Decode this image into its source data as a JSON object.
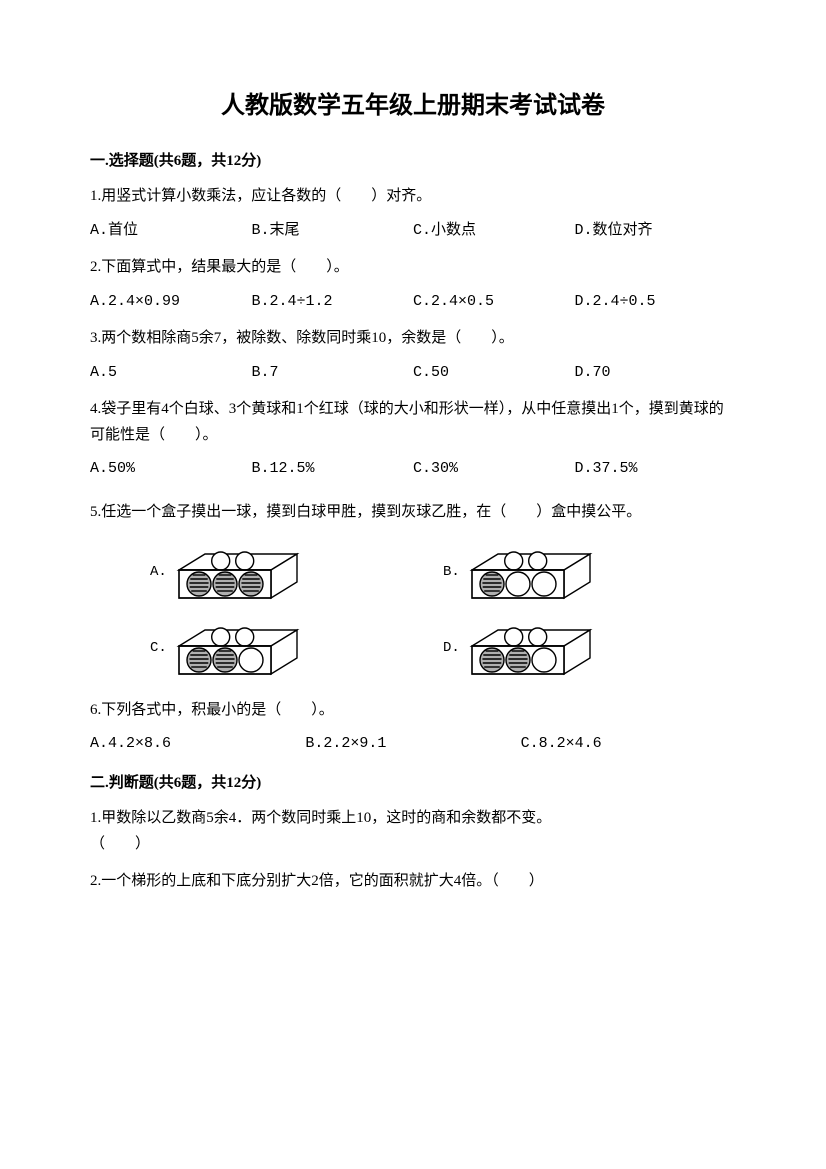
{
  "title": "人教版数学五年级上册期末考试试卷",
  "section1": {
    "header": "一.选择题(共6题，共12分)",
    "q1": {
      "text": "1.用竖式计算小数乘法，应让各数的（　　）对齐。",
      "opts": {
        "a": "A.首位",
        "b": "B.末尾",
        "c": "C.小数点",
        "d": "D.数位对齐"
      }
    },
    "q2": {
      "text": "2.下面算式中，结果最大的是（　　）。",
      "opts": {
        "a": "A.2.4×0.99",
        "b": "B.2.4÷1.2",
        "c": "C.2.4×0.5",
        "d": "D.2.4÷0.5"
      }
    },
    "q3": {
      "text": "3.两个数相除商5余7，被除数、除数同时乘10，余数是（　　）。",
      "opts": {
        "a": "A.5",
        "b": "B.7",
        "c": "C.50",
        "d": "D.70"
      }
    },
    "q4": {
      "text": "4.袋子里有4个白球、3个黄球和1个红球（球的大小和形状一样），从中任意摸出1个，摸到黄球的可能性是（　　）。",
      "opts": {
        "a": "A.50%",
        "b": "B.12.5%",
        "c": "C.30%",
        "d": "D.37.5%"
      }
    },
    "q5": {
      "text": "5.任选一个盒子摸出一球，摸到白球甲胜，摸到灰球乙胜，在（　　）盒中摸公平。",
      "boxes": {
        "a": {
          "label": "A.",
          "top": [
            "w",
            "w"
          ],
          "bottom": [
            "g",
            "g",
            "g"
          ]
        },
        "b": {
          "label": "B.",
          "top": [
            "w",
            "w"
          ],
          "bottom": [
            "g",
            "w",
            "w"
          ]
        },
        "c": {
          "label": "C.",
          "top": [
            "w",
            "w"
          ],
          "bottom": [
            "g",
            "g",
            "w"
          ]
        },
        "d": {
          "label": "D.",
          "top": [
            "w",
            "w"
          ],
          "bottom": [
            "g",
            "g",
            "w"
          ]
        }
      }
    },
    "q6": {
      "text": "6.下列各式中，积最小的是（　　）。",
      "opts": {
        "a": "A.4.2×8.6",
        "b": "B.2.2×9.1",
        "c": "C.8.2×4.6"
      }
    }
  },
  "section2": {
    "header": "二.判断题(共6题，共12分)",
    "q1": {
      "text": "1.甲数除以乙数商5余4．两个数同时乘上10，这时的商和余数都不变。",
      "blank": "（　　）"
    },
    "q2": {
      "text": "2.一个梯形的上底和下底分别扩大2倍，它的面积就扩大4倍。（　　）"
    }
  },
  "colors": {
    "text": "#000000",
    "background": "#ffffff",
    "ball_white": "#ffffff",
    "ball_grey": "#b0b0b0",
    "ball_stroke": "#000000"
  }
}
